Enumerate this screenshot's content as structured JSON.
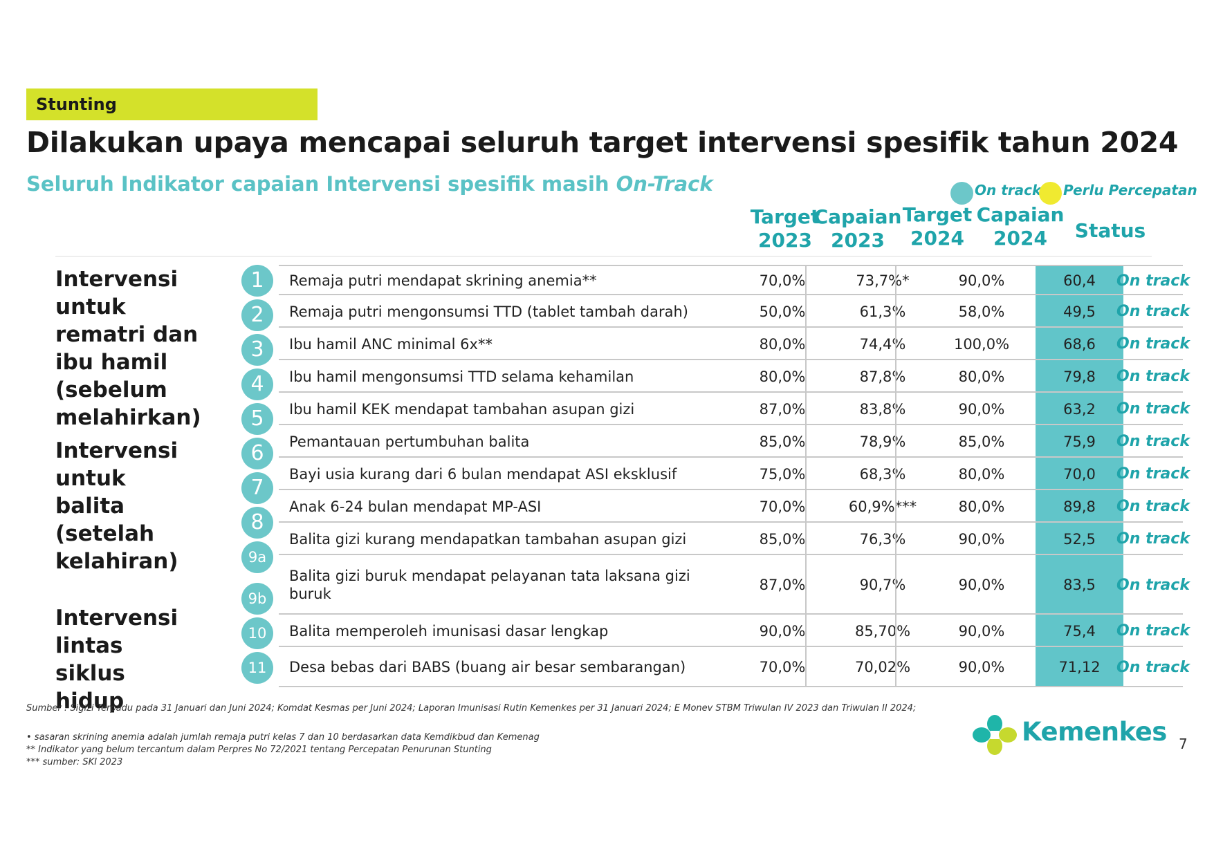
{
  "tag": "Stunting",
  "title": "Dilakukan upaya mencapai seluruh target intervensi spesifik tahun 2024",
  "subtitle_main": "Seluruh Indikator capaian Intervensi spesifik masih ",
  "subtitle_italic": "On-Track",
  "legend": [
    {
      "label": "On track",
      "color": "#6cc7c9"
    },
    {
      "label": "Perlu Percepatan",
      "color": "#f0ea30"
    }
  ],
  "columns": {
    "target2023": [
      "Target",
      "2023"
    ],
    "capaian2023": [
      "Capaian",
      "2023"
    ],
    "target2024": [
      "Target",
      "2024"
    ],
    "capaian2024": [
      "Capaian",
      "2024"
    ],
    "status": "Status"
  },
  "groups": [
    {
      "label": "Intervensi untuk rematri dan ibu hamil (sebelum melahirkan)"
    },
    {
      "label": "Intervensi untuk balita (setelah kelahiran)"
    },
    {
      "label": "Intervensi lintas siklus hidup"
    }
  ],
  "markers": [
    "1",
    "2",
    "3",
    "4",
    "5",
    "6",
    "7",
    "8",
    "9a",
    "9b",
    "10",
    "11"
  ],
  "rows": [
    {
      "name": "Remaja putri mendapat skrining anemia**",
      "target2023": "70,0%",
      "capaian2023": "73,7%*",
      "target2024": "90,0%",
      "capaian2024": "60,4",
      "status": "On track"
    },
    {
      "name": "Remaja putri mengonsumsi TTD (tablet tambah darah)",
      "target2023": "50,0%",
      "capaian2023": "61,3%",
      "target2024": "58,0%",
      "capaian2024": "49,5",
      "status": "On track"
    },
    {
      "name": "Ibu hamil ANC minimal 6x**",
      "target2023": "80,0%",
      "capaian2023": "74,4%",
      "target2024": "100,0%",
      "capaian2024": "68,6",
      "status": "On track"
    },
    {
      "name": "Ibu hamil mengonsumsi TTD selama kehamilan",
      "target2023": "80,0%",
      "capaian2023": "87,8%",
      "target2024": "80,0%",
      "capaian2024": "79,8",
      "status": "On track"
    },
    {
      "name": "Ibu hamil KEK mendapat tambahan asupan gizi",
      "target2023": "87,0%",
      "capaian2023": "83,8%",
      "target2024": "90,0%",
      "capaian2024": "63,2",
      "status": "On track"
    },
    {
      "name": "Pemantauan pertumbuhan balita",
      "target2023": "85,0%",
      "capaian2023": "78,9%",
      "target2024": "85,0%",
      "capaian2024": "75,9",
      "status": "On track"
    },
    {
      "name": "Bayi usia kurang dari 6 bulan mendapat ASI eksklusif",
      "target2023": "75,0%",
      "capaian2023": "68,3%",
      "target2024": "80,0%",
      "capaian2024": "70,0",
      "status": "On track"
    },
    {
      "name": "Anak 6-24 bulan mendapat MP-ASI",
      "target2023": "70,0%",
      "capaian2023": "60,9%***",
      "target2024": "80,0%",
      "capaian2024": "89,8",
      "status": "On track"
    },
    {
      "name": "Balita gizi kurang mendapatkan tambahan asupan gizi",
      "target2023": "85,0%",
      "capaian2023": "76,3%",
      "target2024": "90,0%",
      "capaian2024": "52,5",
      "status": "On track"
    },
    {
      "name": "Balita gizi buruk mendapat pelayanan tata laksana gizi buruk",
      "target2023": "87,0%",
      "capaian2023": "90,7%",
      "target2024": "90,0%",
      "capaian2024": "83,5",
      "status": "On track"
    },
    {
      "name": "Balita memperoleh imunisasi dasar lengkap",
      "target2023": "90,0%",
      "capaian2023": "85,70%",
      "target2024": "90,0%",
      "capaian2024": "75,4",
      "status": "On track"
    },
    {
      "name": "Desa bebas dari BABS (buang air besar sembarangan)",
      "target2023": "70,0%",
      "capaian2023": "70,02%",
      "target2024": "90,0%",
      "capaian2024": "71,12",
      "status": "On track"
    }
  ],
  "source": "Sumber : Sigizi Terpadu pada 31 Januari dan Juni 2024; Komdat Kesmas per Juni 2024; Laporan Imunisasi Rutin Kemenkes per 31 Januari 2024;  E Monev STBM Triwulan IV 2023 dan Triwulan II 2024;",
  "notes": [
    "•       sasaran skrining anemia adalah jumlah remaja putri kelas 7 dan 10 berdasarkan data Kemdikbud dan Kemenag",
    "** Indikator yang belum tercantum dalam Perpres No 72/2021 tentang Percepatan Penurunan Stunting",
    "*** sumber: SKI 2023"
  ],
  "logo_text": "Kemenkes",
  "page_number": "7"
}
